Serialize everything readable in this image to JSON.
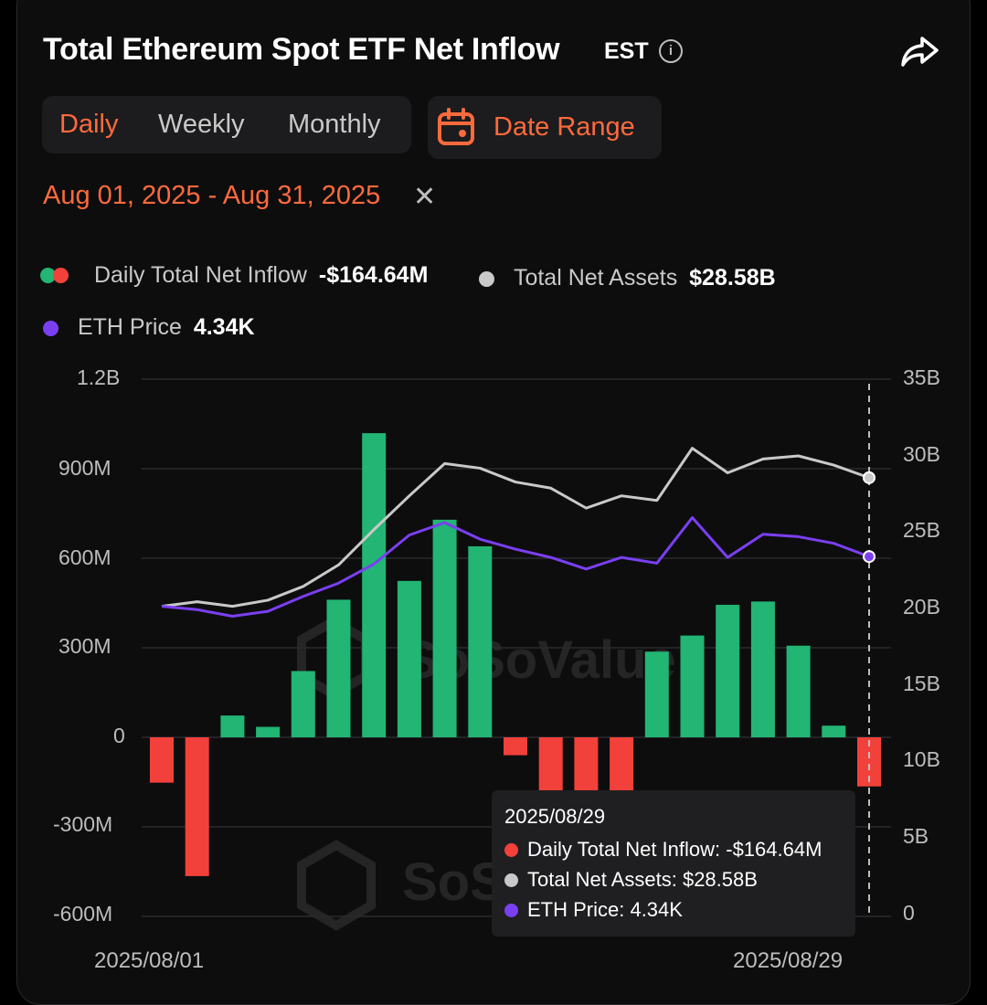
{
  "header": {
    "title": "Total Ethereum Spot ETF Net Inflow",
    "timezone": "EST"
  },
  "tabs": [
    {
      "label": "Daily",
      "active": true
    },
    {
      "label": "Weekly",
      "active": false
    },
    {
      "label": "Monthly",
      "active": false
    }
  ],
  "date_range_button": "Date Range",
  "date_range": "Aug 01, 2025 - Aug 31, 2025",
  "legend": {
    "inflow_label": "Daily Total Net Inflow",
    "inflow_value": "-$164.64M",
    "assets_label": "Total Net Assets",
    "assets_value": "$28.58B",
    "price_label": "ETH Price",
    "price_value": "4.34K"
  },
  "tooltip": {
    "date": "2025/08/29",
    "inflow": "Daily Total Net Inflow:  -$164.64M",
    "assets": "Total Net Assets:  $28.58B",
    "price": "ETH Price:  4.34K"
  },
  "watermark": "SoSoValue",
  "colors": {
    "positive": "#22b573",
    "negative": "#f2413a",
    "assets_line": "#c9c9c9",
    "price_line": "#7b3ff2",
    "accent": "#ff6a3d"
  },
  "chart_data": {
    "type": "bar",
    "x_labels_shown": [
      "2025/08/01",
      "2025/08/29"
    ],
    "left_axis_ticks": [
      "1.2B",
      "900M",
      "600M",
      "300M",
      "0",
      "-300M",
      "-600M"
    ],
    "right_axis_ticks": [
      "35B",
      "30B",
      "25B",
      "20B",
      "15B",
      "10B",
      "5B",
      "0"
    ],
    "left_ylim": [
      -600,
      1200
    ],
    "right_ylim": [
      0,
      35
    ],
    "x": [
      "2025/08/01",
      "2025/08/04",
      "2025/08/05",
      "2025/08/06",
      "2025/08/07",
      "2025/08/08",
      "2025/08/11",
      "2025/08/12",
      "2025/08/13",
      "2025/08/14",
      "2025/08/15",
      "2025/08/18",
      "2025/08/19",
      "2025/08/20",
      "2025/08/21",
      "2025/08/22",
      "2025/08/25",
      "2025/08/26",
      "2025/08/27",
      "2025/08/28",
      "2025/08/29"
    ],
    "series": [
      {
        "name": "Daily Total Net Inflow",
        "axis": "left",
        "unit": "M",
        "values": [
          -152,
          -465,
          73,
          35,
          222,
          461,
          1019,
          524,
          729,
          640,
          -60,
          -197,
          -197,
          -197,
          287,
          341,
          444,
          455,
          307,
          39,
          -164.64
        ]
      },
      {
        "name": "Total Net Assets",
        "axis": "right",
        "unit": "B",
        "values": [
          20.2,
          20.5,
          20.2,
          20.6,
          21.5,
          22.9,
          25.2,
          27.4,
          29.5,
          29.2,
          28.3,
          27.9,
          26.6,
          27.4,
          27.1,
          30.5,
          28.9,
          29.8,
          30.0,
          29.4,
          28.58
        ]
      },
      {
        "name": "ETH Price",
        "axis": "right",
        "unit": "K",
        "values": [
          3.74,
          3.7,
          3.62,
          3.68,
          3.86,
          4.02,
          4.25,
          4.6,
          4.75,
          4.55,
          4.43,
          4.33,
          4.19,
          4.33,
          4.26,
          4.81,
          4.33,
          4.61,
          4.58,
          4.5,
          4.34
        ]
      }
    ],
    "grid": "horizontal",
    "legend_position": "top-left"
  }
}
